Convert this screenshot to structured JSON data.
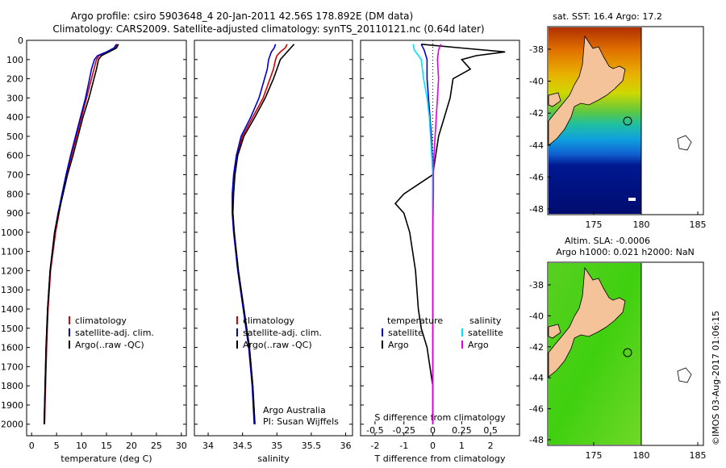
{
  "title_line1": "Argo profile: csiro 5903648_4 20-Jan-2011 42.56S 178.892E (DM data)",
  "title_line2": "Climatology: CARS2009. Satellite-adjusted climatology: synTS_20110121.nc (0.64d later)",
  "credit": "©IMOS 03-Aug-2017 01:06:15",
  "colors": {
    "climatology": "#d00000",
    "satellite": "#0000d0",
    "argo": "#000000",
    "sat_diff": "#00e0ff",
    "argo_sal_diff": "#e000e0",
    "land": "#f5c39a"
  },
  "chart_data": [
    {
      "type": "line",
      "xlabel": "temperature (deg C)",
      "xlim": [
        -1,
        31
      ],
      "xticks": [
        "0",
        "5",
        "10",
        "15",
        "20",
        "25",
        "30"
      ],
      "ylim": [
        2060,
        0
      ],
      "yticks": [
        "0",
        "100",
        "200",
        "300",
        "400",
        "500",
        "600",
        "700",
        "800",
        "900",
        "1000",
        "1100",
        "1200",
        "1300",
        "1400",
        "1500",
        "1600",
        "1700",
        "1800",
        "1900",
        "2000"
      ],
      "legend": [
        "climatology",
        "satellite-adj. clim.",
        "Argo(..raw -QC)"
      ],
      "series": [
        {
          "name": "climatology",
          "depth": [
            20,
            40,
            60,
            80,
            100,
            150,
            200,
            300,
            400,
            500,
            600,
            700,
            800,
            900,
            1000,
            1200,
            1400,
            1600,
            1800,
            2000
          ],
          "values": [
            17.2,
            16.8,
            15.2,
            13.5,
            13.0,
            12.5,
            12.0,
            11.0,
            10.0,
            9.0,
            8.0,
            7.0,
            6.2,
            5.5,
            4.8,
            3.8,
            3.3,
            3.0,
            2.8,
            2.6
          ]
        },
        {
          "name": "satellite-adj. clim.",
          "depth": [
            20,
            40,
            60,
            80,
            100,
            150,
            200,
            300,
            400,
            500,
            600,
            700,
            800,
            900,
            1000,
            1200,
            1400,
            1600,
            1800,
            2000
          ],
          "values": [
            17.0,
            16.5,
            15.0,
            13.2,
            12.6,
            12.0,
            11.6,
            10.8,
            9.8,
            8.8,
            7.8,
            6.9,
            6.1,
            5.3,
            4.6,
            3.7,
            3.2,
            2.9,
            2.7,
            2.5
          ]
        },
        {
          "name": "Argo(..raw -QC)",
          "depth": [
            20,
            40,
            60,
            80,
            100,
            150,
            200,
            300,
            400,
            500,
            600,
            700,
            800,
            900,
            1000,
            1200,
            1400,
            1600,
            1800,
            2000
          ],
          "values": [
            17.4,
            17.0,
            15.5,
            14.0,
            13.4,
            13.0,
            12.5,
            11.5,
            10.3,
            9.3,
            8.3,
            7.2,
            6.3,
            5.4,
            4.6,
            3.7,
            3.2,
            2.9,
            2.7,
            2.5
          ]
        }
      ]
    },
    {
      "type": "line",
      "xlabel": "salinity",
      "xlim": [
        33.8,
        36.1
      ],
      "xticks": [
        "34",
        "34.5",
        "35",
        "35.5",
        "36"
      ],
      "ylim": [
        2060,
        0
      ],
      "legend": [
        "climatology",
        "satellite-adj. clim.",
        "Argo(..raw -QC)"
      ],
      "annotation": [
        "Argo Australia",
        "PI: Susan Wijffels"
      ],
      "series": [
        {
          "name": "climatology",
          "depth": [
            20,
            40,
            60,
            80,
            100,
            150,
            200,
            300,
            400,
            500,
            600,
            700,
            800,
            900,
            1000,
            1200,
            1400,
            1600,
            1800,
            2000
          ],
          "values": [
            35.15,
            35.12,
            35.05,
            35.0,
            34.98,
            34.95,
            34.9,
            34.8,
            34.65,
            34.5,
            34.42,
            34.38,
            34.36,
            34.36,
            34.38,
            34.44,
            34.52,
            34.6,
            34.65,
            34.68
          ]
        },
        {
          "name": "satellite-adj. clim.",
          "depth": [
            20,
            40,
            60,
            80,
            100,
            150,
            200,
            300,
            400,
            500,
            600,
            700,
            800,
            900,
            1000,
            1200,
            1400,
            1600,
            1800,
            2000
          ],
          "values": [
            34.98,
            34.96,
            34.92,
            34.9,
            34.88,
            34.86,
            34.82,
            34.74,
            34.62,
            34.48,
            34.41,
            34.37,
            34.35,
            34.35,
            34.37,
            34.43,
            34.51,
            34.59,
            34.64,
            34.67
          ]
        },
        {
          "name": "Argo(..raw -QC)",
          "depth": [
            20,
            40,
            60,
            80,
            100,
            150,
            200,
            300,
            400,
            500,
            600,
            700,
            800,
            900,
            1000,
            1200,
            1400,
            1600,
            1800,
            2000
          ],
          "values": [
            35.25,
            35.2,
            35.15,
            35.1,
            35.05,
            35.0,
            34.95,
            34.83,
            34.68,
            34.52,
            34.43,
            34.39,
            34.37,
            34.36,
            34.38,
            34.44,
            34.52,
            34.6,
            34.65,
            34.68
          ]
        }
      ]
    },
    {
      "type": "line",
      "xlabel": "T difference from climatology",
      "xlabel_top": "S difference from climatology",
      "xlim": [
        -2.5,
        3.0
      ],
      "xticks": [
        "-2",
        "-1",
        "0",
        "1",
        "2"
      ],
      "xticks_top": [
        "-0.5",
        "-0.25",
        "0",
        "0.25",
        "0.5"
      ],
      "ylim": [
        2060,
        0
      ],
      "legend_headers": [
        "temperature",
        "salinity"
      ],
      "legend": [
        "satellite",
        "Argo",
        "satellite",
        "Argo"
      ],
      "series": [
        {
          "name": "temperature satellite",
          "depth": [
            20,
            50,
            100,
            200,
            300,
            400,
            500,
            600,
            700,
            800,
            1000,
            1500,
            2000
          ],
          "values": [
            -0.4,
            -0.3,
            -0.2,
            -0.2,
            -0.15,
            -0.1,
            -0.05,
            -0.02,
            0,
            0,
            0,
            0,
            0
          ]
        },
        {
          "name": "temperature Argo",
          "depth": [
            20,
            40,
            60,
            80,
            100,
            150,
            200,
            300,
            400,
            500,
            600,
            700,
            750,
            800,
            850,
            900,
            1000,
            1200,
            1400,
            1500,
            1600,
            1800,
            2000
          ],
          "values": [
            -0.4,
            1.0,
            2.5,
            1.5,
            1.0,
            1.3,
            0.7,
            0.6,
            0.4,
            0.2,
            0.1,
            0,
            -0.5,
            -1.0,
            -1.3,
            -1.0,
            -0.8,
            -0.6,
            -0.5,
            -0.4,
            -0.2,
            0,
            0
          ]
        },
        {
          "name": "salinity satellite",
          "depth": [
            20,
            50,
            100,
            200,
            300,
            400,
            500,
            600,
            700,
            800,
            1000,
            1500,
            2000
          ],
          "values": [
            -0.17,
            -0.16,
            -0.1,
            -0.08,
            -0.05,
            -0.03,
            -0.02,
            -0.01,
            0,
            0,
            0,
            0,
            0
          ]
        },
        {
          "name": "salinity Argo",
          "depth": [
            20,
            50,
            100,
            200,
            300,
            400,
            500,
            600,
            700,
            800,
            1000,
            1500,
            2000
          ],
          "values": [
            0.07,
            0.05,
            0.04,
            0.05,
            0.04,
            0.03,
            0.02,
            0.01,
            0.005,
            0.005,
            0,
            0,
            0
          ]
        }
      ]
    },
    {
      "type": "heatmap",
      "title": "sat. SST: 16.4 Argo: 17.2",
      "xticks": [
        "175",
        "180",
        "185"
      ],
      "yticks": [
        "-38",
        "-40",
        "-42",
        "-44",
        "-46",
        "-48"
      ]
    },
    {
      "type": "heatmap",
      "title_line1": "Altim. SLA: -0.0006",
      "title_line2": "Argo h1000: 0.021 h2000: NaN",
      "xticks": [
        "175",
        "180",
        "185"
      ],
      "yticks": [
        "-38",
        "-40",
        "-42",
        "-44",
        "-46",
        "-48"
      ]
    }
  ]
}
